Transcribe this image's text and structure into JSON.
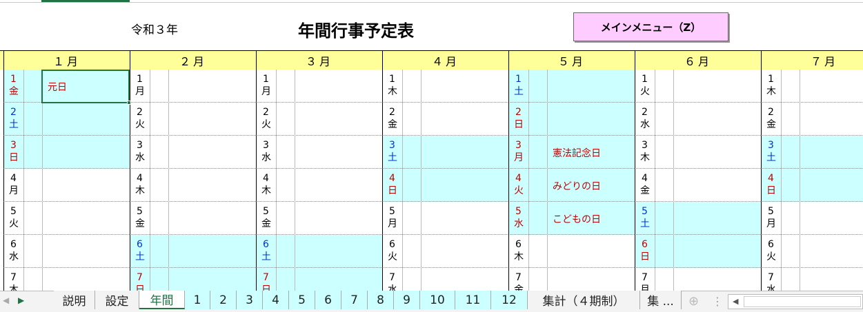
{
  "header": {
    "era": "令和３年",
    "title": "年間行事予定表",
    "button": "メインメニュー（Z）"
  },
  "months": [
    {
      "label": "１月",
      "days": [
        {
          "day": 1,
          "weekday": "金",
          "color": "#c00000",
          "highlight": true,
          "event": "元日"
        },
        {
          "day": 2,
          "weekday": "土",
          "color": "#0033cc",
          "highlight": true
        },
        {
          "day": 3,
          "weekday": "日",
          "color": "#c00000",
          "highlight": true
        },
        {
          "day": 4,
          "weekday": "月",
          "color": "#000000",
          "highlight": false
        },
        {
          "day": 5,
          "weekday": "火",
          "color": "#000000",
          "highlight": false
        },
        {
          "day": 6,
          "weekday": "水",
          "color": "#000000",
          "highlight": false
        },
        {
          "day": 7,
          "weekday": "木",
          "color": "#000000",
          "highlight": false
        }
      ]
    },
    {
      "label": "２月",
      "days": [
        {
          "day": 1,
          "weekday": "月",
          "color": "#000000",
          "highlight": false
        },
        {
          "day": 2,
          "weekday": "火",
          "color": "#000000",
          "highlight": false
        },
        {
          "day": 3,
          "weekday": "水",
          "color": "#000000",
          "highlight": false
        },
        {
          "day": 4,
          "weekday": "木",
          "color": "#000000",
          "highlight": false
        },
        {
          "day": 5,
          "weekday": "金",
          "color": "#000000",
          "highlight": false
        },
        {
          "day": 6,
          "weekday": "土",
          "color": "#0033cc",
          "highlight": true
        },
        {
          "day": 7,
          "weekday": "日",
          "color": "#c00000",
          "highlight": true
        }
      ]
    },
    {
      "label": "３月",
      "days": [
        {
          "day": 1,
          "weekday": "月",
          "color": "#000000",
          "highlight": false
        },
        {
          "day": 2,
          "weekday": "火",
          "color": "#000000",
          "highlight": false
        },
        {
          "day": 3,
          "weekday": "水",
          "color": "#000000",
          "highlight": false
        },
        {
          "day": 4,
          "weekday": "木",
          "color": "#000000",
          "highlight": false
        },
        {
          "day": 5,
          "weekday": "金",
          "color": "#000000",
          "highlight": false
        },
        {
          "day": 6,
          "weekday": "土",
          "color": "#0033cc",
          "highlight": true
        },
        {
          "day": 7,
          "weekday": "日",
          "color": "#c00000",
          "highlight": true
        }
      ]
    },
    {
      "label": "４月",
      "days": [
        {
          "day": 1,
          "weekday": "木",
          "color": "#000000",
          "highlight": false
        },
        {
          "day": 2,
          "weekday": "金",
          "color": "#000000",
          "highlight": false
        },
        {
          "day": 3,
          "weekday": "土",
          "color": "#0033cc",
          "highlight": true
        },
        {
          "day": 4,
          "weekday": "日",
          "color": "#c00000",
          "highlight": true
        },
        {
          "day": 5,
          "weekday": "月",
          "color": "#000000",
          "highlight": false
        },
        {
          "day": 6,
          "weekday": "火",
          "color": "#000000",
          "highlight": false
        },
        {
          "day": 7,
          "weekday": "水",
          "color": "#000000",
          "highlight": false
        }
      ]
    },
    {
      "label": "５月",
      "days": [
        {
          "day": 1,
          "weekday": "土",
          "color": "#0033cc",
          "highlight": true
        },
        {
          "day": 2,
          "weekday": "日",
          "color": "#c00000",
          "highlight": true
        },
        {
          "day": 3,
          "weekday": "月",
          "color": "#c00000",
          "highlight": true,
          "event": "憲法記念日"
        },
        {
          "day": 4,
          "weekday": "火",
          "color": "#c00000",
          "highlight": true,
          "event": "みどりの日"
        },
        {
          "day": 5,
          "weekday": "水",
          "color": "#c00000",
          "highlight": true,
          "event": "こどもの日"
        },
        {
          "day": 6,
          "weekday": "木",
          "color": "#000000",
          "highlight": false
        },
        {
          "day": 7,
          "weekday": "金",
          "color": "#000000",
          "highlight": false
        }
      ]
    },
    {
      "label": "６月",
      "days": [
        {
          "day": 1,
          "weekday": "火",
          "color": "#000000",
          "highlight": false
        },
        {
          "day": 2,
          "weekday": "水",
          "color": "#000000",
          "highlight": false
        },
        {
          "day": 3,
          "weekday": "木",
          "color": "#000000",
          "highlight": false
        },
        {
          "day": 4,
          "weekday": "金",
          "color": "#000000",
          "highlight": false
        },
        {
          "day": 5,
          "weekday": "土",
          "color": "#0033cc",
          "highlight": true
        },
        {
          "day": 6,
          "weekday": "日",
          "color": "#c00000",
          "highlight": true
        },
        {
          "day": 7,
          "weekday": "月",
          "color": "#000000",
          "highlight": false
        }
      ]
    },
    {
      "label": "７月",
      "days": [
        {
          "day": 1,
          "weekday": "木",
          "color": "#000000",
          "highlight": false
        },
        {
          "day": 2,
          "weekday": "金",
          "color": "#000000",
          "highlight": false
        },
        {
          "day": 3,
          "weekday": "土",
          "color": "#0033cc",
          "highlight": true
        },
        {
          "day": 4,
          "weekday": "日",
          "color": "#c00000",
          "highlight": true
        },
        {
          "day": 5,
          "weekday": "月",
          "color": "#000000",
          "highlight": false
        },
        {
          "day": 6,
          "weekday": "火",
          "color": "#000000",
          "highlight": false
        },
        {
          "day": 7,
          "weekday": "水",
          "color": "#000000",
          "highlight": false
        }
      ]
    }
  ],
  "tabs": [
    {
      "label": "説明",
      "color": "#f3f3f3"
    },
    {
      "label": "設定",
      "color": "#f3f3f3"
    },
    {
      "label": "年間",
      "color": "#ffffff",
      "active": true
    },
    {
      "label": "1",
      "color": "#ccffff"
    },
    {
      "label": "2",
      "color": "#ccffff"
    },
    {
      "label": "3",
      "color": "#ccffff"
    },
    {
      "label": "4",
      "color": "#ccffff"
    },
    {
      "label": "5",
      "color": "#ccffff"
    },
    {
      "label": "6",
      "color": "#ccffff"
    },
    {
      "label": "7",
      "color": "#ccffff"
    },
    {
      "label": "8",
      "color": "#ccffff"
    },
    {
      "label": "9",
      "color": "#ccffff"
    },
    {
      "label": "10",
      "color": "#ccffff"
    },
    {
      "label": "11",
      "color": "#ccffff"
    },
    {
      "label": "12",
      "color": "#ccffff"
    },
    {
      "label": "集計（４期制）",
      "color": "#f3f3f3"
    },
    {
      "label": "集 ...",
      "color": "#f3f3f3"
    }
  ]
}
